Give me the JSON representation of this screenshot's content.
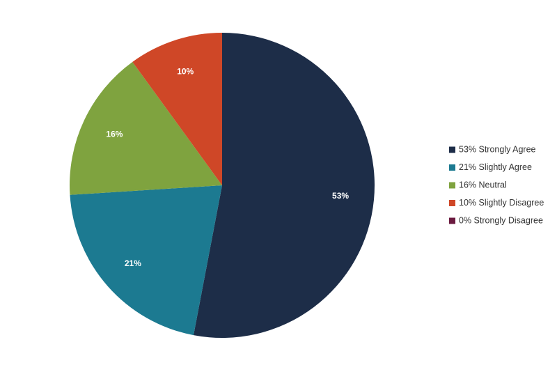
{
  "chart_data": {
    "type": "pie",
    "categories": [
      "Strongly Agree",
      "Slightly Agree",
      "Neutral",
      "Slightly Disagree",
      "Strongly Disagree"
    ],
    "values": [
      53,
      21,
      16,
      10,
      0
    ],
    "data_labels": [
      "53%",
      "21%",
      "16%",
      "10%",
      "0%"
    ],
    "legend": {
      "placement": "right",
      "entries": [
        "53% Strongly Agree",
        "21% Slightly Agree",
        "16% Neutral",
        "10% Slightly Disagree",
        "0% Strongly Disagree"
      ]
    },
    "colors": [
      "#1d2d48",
      "#1c7a91",
      "#7fa33f",
      "#cf4727",
      "#6b1a3f"
    ],
    "start_angle_deg": 0,
    "direction": "clockwise"
  }
}
